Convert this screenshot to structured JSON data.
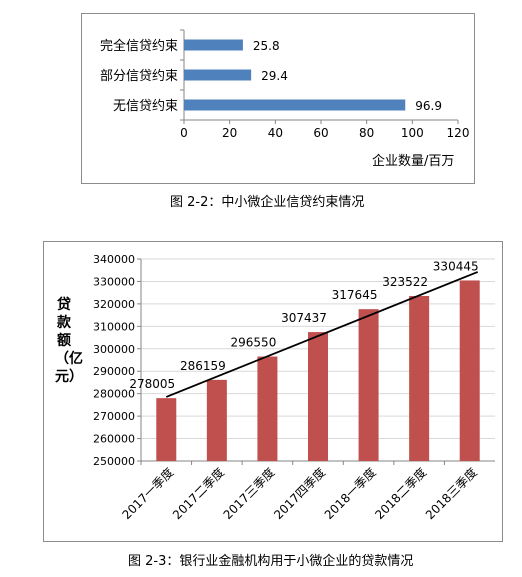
{
  "chart_data": [
    {
      "type": "bar",
      "orientation": "horizontal",
      "categories": [
        "完全信贷约束",
        "部分信贷约束",
        "无信贷约束"
      ],
      "values": [
        25.8,
        29.4,
        96.9
      ],
      "xlabel": "企业数量/百万",
      "xlim": [
        0,
        120
      ],
      "xticks": [
        0,
        20,
        40,
        60,
        80,
        100,
        120
      ],
      "bar_color": "#4f81bd",
      "grid": false,
      "data_labels": true
    },
    {
      "type": "bar",
      "categories": [
        "2017一季度",
        "2017二季度",
        "2017三季度",
        "2017四季度",
        "2018一季度",
        "2018二季度",
        "2018三季度"
      ],
      "values": [
        278005,
        286159,
        296550,
        307437,
        317645,
        323522,
        330445
      ],
      "ylabel": "贷款额（亿元）",
      "ylim": [
        250000,
        340000
      ],
      "yticks": [
        250000,
        260000,
        270000,
        280000,
        290000,
        300000,
        310000,
        320000,
        330000,
        340000
      ],
      "bar_color": "#c0504d",
      "grid": true,
      "trendline": true,
      "data_labels": true
    }
  ],
  "captions": {
    "fig1": "图 2-2：中小微企业信贷约束情况",
    "fig2": "图 2-3：银行业金融机构用于小微企业的贷款情况"
  }
}
